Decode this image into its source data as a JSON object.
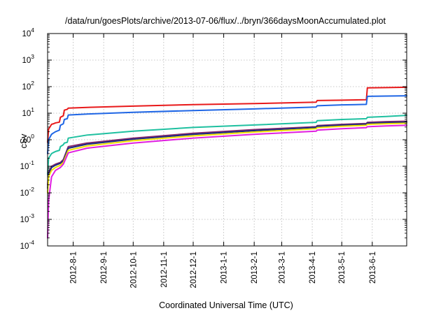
{
  "chart_data": {
    "type": "line",
    "title": "/data/run/goesPlots/archive/2013-07-06/flux/../bryn/366daysMoonAccumulated.plot",
    "xlabel": "Coordinated Universal Time (UTC)",
    "ylabel": "cSv",
    "yscale": "log",
    "ylim": [
      0.0001,
      10000
    ],
    "xlim": [
      "2012-07-06",
      "2013-07-06"
    ],
    "grid": true,
    "y_ticks": [
      {
        "value": 0.0001,
        "base": "10",
        "exp": "-4"
      },
      {
        "value": 0.001,
        "base": "10",
        "exp": "-3"
      },
      {
        "value": 0.01,
        "base": "10",
        "exp": "-2"
      },
      {
        "value": 0.1,
        "base": "10",
        "exp": "-1"
      },
      {
        "value": 1,
        "base": "10",
        "exp": "0"
      },
      {
        "value": 10,
        "base": "10",
        "exp": "1"
      },
      {
        "value": 100,
        "base": "10",
        "exp": "2"
      },
      {
        "value": 1000,
        "base": "10",
        "exp": "3"
      },
      {
        "value": 10000,
        "base": "10",
        "exp": "4"
      }
    ],
    "x_ticks": [
      {
        "value": "2012-08-01",
        "label": "2012-8-1"
      },
      {
        "value": "2012-09-01",
        "label": "2012-9-1"
      },
      {
        "value": "2012-10-01",
        "label": "2012-10-1"
      },
      {
        "value": "2012-11-01",
        "label": "2012-11-1"
      },
      {
        "value": "2012-12-01",
        "label": "2012-12-1"
      },
      {
        "value": "2013-01-01",
        "label": "2013-1-1"
      },
      {
        "value": "2013-02-01",
        "label": "2013-2-1"
      },
      {
        "value": "2013-03-01",
        "label": "2013-3-1"
      },
      {
        "value": "2013-04-01",
        "label": "2013-4-1"
      },
      {
        "value": "2013-05-01",
        "label": "2013-5-1"
      },
      {
        "value": "2013-06-01",
        "label": "2013-6-1"
      }
    ],
    "series": [
      {
        "color": "#e8191a",
        "width": 2,
        "x": [
          "2012-07-06",
          "2012-07-07",
          "2012-07-10",
          "2012-07-12",
          "2012-07-14",
          "2012-07-18",
          "2012-07-19",
          "2012-07-22",
          "2012-07-23",
          "2012-07-26",
          "2012-07-27",
          "2012-08-15",
          "2012-10-01",
          "2012-12-01",
          "2013-02-01",
          "2013-04-05",
          "2013-04-06",
          "2013-05-01",
          "2013-05-26",
          "2013-05-27",
          "2013-06-15",
          "2013-07-06"
        ],
        "y": [
          0.8,
          2.5,
          3.8,
          4.0,
          4.3,
          4.6,
          7.0,
          8.0,
          13,
          14,
          15.5,
          16.5,
          18.5,
          21,
          23,
          26,
          30,
          31,
          32,
          90,
          92,
          95
        ]
      },
      {
        "color": "#1f66e5",
        "width": 2,
        "x": [
          "2012-07-06",
          "2012-07-07",
          "2012-07-10",
          "2012-07-12",
          "2012-07-14",
          "2012-07-18",
          "2012-07-19",
          "2012-07-22",
          "2012-07-23",
          "2012-07-26",
          "2012-07-27",
          "2012-08-15",
          "2012-10-01",
          "2012-12-01",
          "2013-02-01",
          "2013-04-05",
          "2013-04-06",
          "2013-05-01",
          "2013-05-26",
          "2013-05-27",
          "2013-06-15",
          "2013-07-06"
        ],
        "y": [
          0.3,
          1.0,
          1.6,
          1.8,
          2.0,
          2.3,
          3.5,
          4.0,
          5.8,
          6.2,
          8.5,
          9.3,
          10.8,
          12.6,
          14.5,
          17,
          19,
          20.5,
          21.5,
          43,
          44,
          45
        ]
      },
      {
        "color": "#1fc0a0",
        "width": 2,
        "x": [
          "2012-07-06",
          "2012-07-07",
          "2012-07-10",
          "2012-07-12",
          "2012-07-14",
          "2012-07-18",
          "2012-07-19",
          "2012-07-22",
          "2012-07-23",
          "2012-07-26",
          "2012-07-27",
          "2012-08-15",
          "2012-10-01",
          "2012-12-01",
          "2013-02-01",
          "2013-04-05",
          "2013-04-06",
          "2013-05-01",
          "2013-05-26",
          "2013-05-27",
          "2013-06-15",
          "2013-07-06"
        ],
        "y": [
          0.05,
          0.2,
          0.3,
          0.33,
          0.36,
          0.4,
          0.55,
          0.65,
          0.75,
          0.8,
          1.15,
          1.5,
          2.1,
          2.9,
          3.6,
          4.5,
          5.2,
          5.8,
          6.2,
          7.0,
          7.5,
          8.3
        ]
      },
      {
        "color": "#8a2a6e",
        "width": 2,
        "x": [
          "2012-07-06",
          "2012-07-07",
          "2012-07-10",
          "2012-07-14",
          "2012-07-19",
          "2012-07-22",
          "2012-07-27",
          "2012-08-15",
          "2012-10-01",
          "2012-12-01",
          "2013-02-01",
          "2013-04-05",
          "2013-04-06",
          "2013-05-01",
          "2013-05-26",
          "2013-05-27",
          "2013-06-15",
          "2013-07-06"
        ],
        "y": [
          0.02,
          0.06,
          0.1,
          0.12,
          0.14,
          0.18,
          0.55,
          0.75,
          1.15,
          1.75,
          2.4,
          3.1,
          3.4,
          3.8,
          4.1,
          4.5,
          4.8,
          5.0
        ]
      },
      {
        "color": "#1a2a80",
        "width": 2,
        "x": [
          "2012-07-06",
          "2012-07-07",
          "2012-07-10",
          "2012-07-14",
          "2012-07-19",
          "2012-07-22",
          "2012-07-27",
          "2012-08-15",
          "2012-10-01",
          "2012-12-01",
          "2013-02-01",
          "2013-04-05",
          "2013-04-06",
          "2013-05-01",
          "2013-05-26",
          "2013-05-27",
          "2013-06-15",
          "2013-07-06"
        ],
        "y": [
          0.015,
          0.05,
          0.09,
          0.11,
          0.13,
          0.16,
          0.48,
          0.68,
          1.05,
          1.6,
          2.2,
          2.9,
          3.2,
          3.55,
          3.85,
          4.2,
          4.4,
          4.6
        ]
      },
      {
        "color": "#f0e000",
        "width": 2,
        "x": [
          "2012-07-06",
          "2012-07-07",
          "2012-07-10",
          "2012-07-14",
          "2012-07-19",
          "2012-07-22",
          "2012-07-27",
          "2012-08-15",
          "2012-10-01",
          "2012-12-01",
          "2013-02-01",
          "2013-04-05",
          "2013-04-06",
          "2013-05-01",
          "2013-05-26",
          "2013-05-27",
          "2013-06-15",
          "2013-07-06"
        ],
        "y": [
          0.01,
          0.04,
          0.07,
          0.09,
          0.11,
          0.14,
          0.4,
          0.58,
          0.92,
          1.4,
          1.95,
          2.6,
          2.85,
          3.2,
          3.5,
          3.8,
          4.0,
          4.2
        ]
      },
      {
        "color": "#e01ee0",
        "width": 2,
        "x": [
          "2012-07-06",
          "2012-07-07",
          "2012-07-10",
          "2012-07-14",
          "2012-07-19",
          "2012-07-22",
          "2012-07-27",
          "2012-08-15",
          "2012-10-01",
          "2012-12-01",
          "2013-02-01",
          "2013-04-05",
          "2013-04-06",
          "2013-05-01",
          "2013-05-26",
          "2013-05-27",
          "2013-06-15",
          "2013-07-06"
        ],
        "y": [
          0.0002,
          0.005,
          0.04,
          0.07,
          0.09,
          0.12,
          0.32,
          0.48,
          0.75,
          1.15,
          1.6,
          2.1,
          2.3,
          2.6,
          2.85,
          3.1,
          3.3,
          3.5
        ]
      }
    ]
  }
}
